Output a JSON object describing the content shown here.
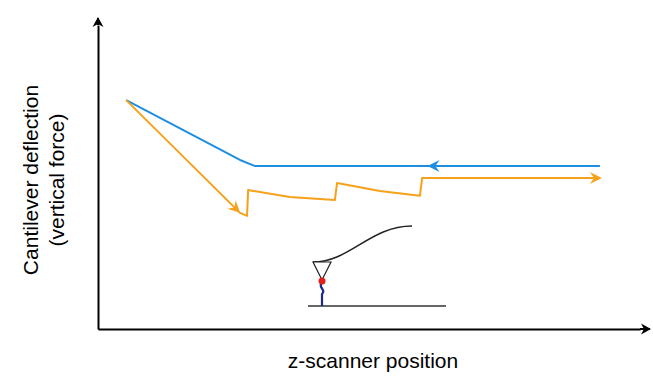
{
  "chart_data": {
    "type": "line",
    "x_label": "z-scanner position",
    "y_label": "Cantilever deflection\n(vertical force)",
    "xlim": [
      0,
      100
    ],
    "ylim": [
      0,
      100
    ],
    "xticks": [],
    "yticks": [],
    "tick_labels": false,
    "grid": false,
    "series": [
      {
        "color": "#1e8ee3",
        "x": [
          5.2,
          26.2,
          29.0,
          92.6
        ],
        "values": [
          75.3,
          55.6,
          53.6,
          53.6
        ]
      },
      {
        "color": "#f7a11a",
        "x": [
          5.2,
          26.2,
          27.5,
          27.7,
          35.4,
          43.7,
          44.1,
          52.0,
          59.4,
          59.8,
          92.6
        ],
        "values": [
          75.3,
          38.2,
          37.2,
          45.7,
          43.4,
          42.4,
          48.0,
          45.4,
          43.8,
          49.7,
          49.7
        ]
      }
    ]
  }
}
